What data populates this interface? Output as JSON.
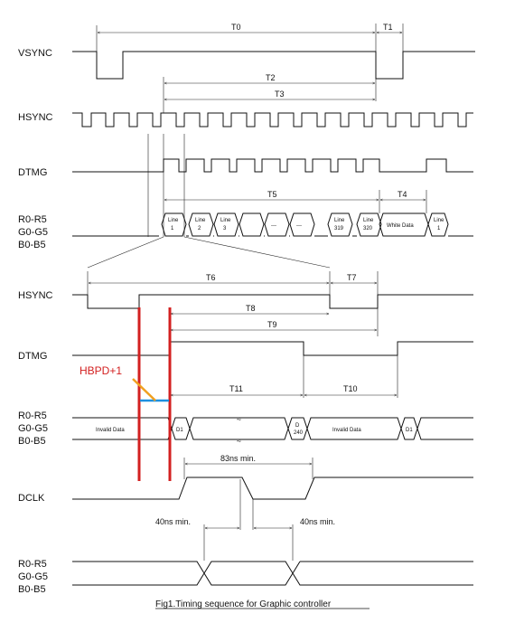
{
  "signals": {
    "vsync": "VSYNC",
    "hsync": "HSYNC",
    "dtmg": "DTMG",
    "r": "R0-R5",
    "g": "G0-G5",
    "b": "B0-B5",
    "hsync2": "HSYNC",
    "dtmg2": "DTMG",
    "r2": "R0-R5",
    "g2": "G0-G5",
    "b2": "B0-B5",
    "dclk": "DCLK",
    "r3": "R0-R5",
    "g3": "G0-G5",
    "b3": "B0-B5"
  },
  "timings": {
    "t0": "T0",
    "t1": "T1",
    "t2": "T2",
    "t3": "T3",
    "t4": "T4",
    "t5": "T5",
    "t6": "T6",
    "t7": "T7",
    "t8": "T8",
    "t9": "T9",
    "t10": "T10",
    "t11": "T11"
  },
  "data_labels": {
    "line1_a": "Line",
    "line1_b": "1",
    "line2_a": "Line",
    "line2_b": "2",
    "line3_a": "Line",
    "line3_b": "3",
    "dots1": "---",
    "dots2": "---",
    "line319_a": "Line",
    "line319_b": "319",
    "line320_a": "Line",
    "line320_b": "320",
    "white_data": "White Data",
    "line1b_a": "Line",
    "line1b_b": "1",
    "invalid1": "Invalid Data",
    "d1a": "D1",
    "d240_a": "D",
    "d240_b": "240",
    "invalid2": "Invalid Data",
    "d1b": "D1",
    "skip1": "≈",
    "skip2": "≈"
  },
  "annotations": {
    "hbpd": "HBPD+1",
    "dclk_min": "83ns min.",
    "min40_left": "40ns min.",
    "min40_right": "40ns min.",
    "caption": "Fig1.Timing sequence for Graphic controller"
  },
  "colors": {
    "marker_red": "#d32020",
    "marker_blue": "#1e90e0",
    "marker_orange": "#f0a020"
  }
}
